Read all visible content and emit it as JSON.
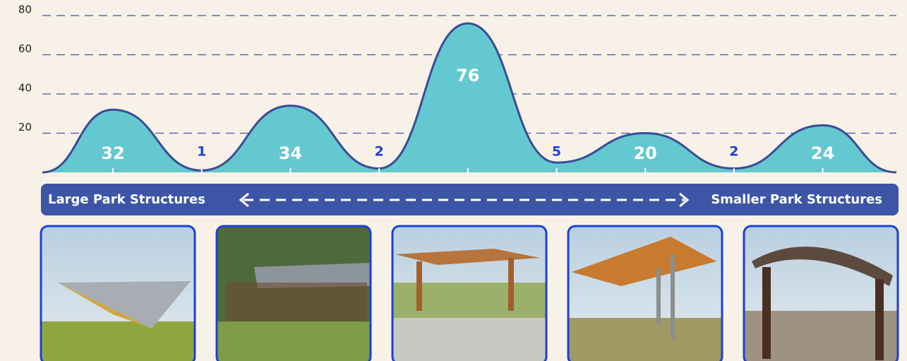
{
  "chart_data": {
    "type": "area",
    "categories": [
      null,
      null,
      null,
      null,
      null,
      null,
      null,
      null,
      null
    ],
    "values": [
      32,
      1,
      34,
      2,
      76,
      5,
      20,
      2,
      24
    ],
    "color": "#63c8cf",
    "line_color": "#3a4b98",
    "ylim": [
      0,
      80
    ],
    "yticks": [
      20,
      40,
      60,
      80
    ],
    "grid": true,
    "annotations": {
      "left": "Large Park Structures",
      "right": "Smaller Park Structures"
    }
  }
}
